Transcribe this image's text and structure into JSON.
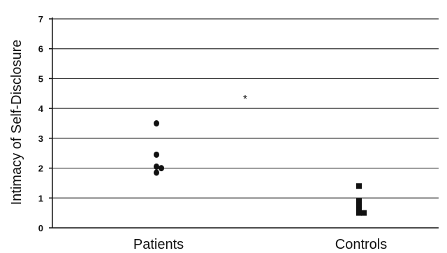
{
  "chart_data": {
    "type": "scatter",
    "ylabel": "Intimacy of Self-Disclosure",
    "xlabel": "",
    "ylim": [
      0,
      7
    ],
    "yticks": [
      "0",
      "1",
      "2",
      "3",
      "4",
      "5",
      "6",
      "7"
    ],
    "grid": true,
    "categories": [
      "Patients",
      "Controls"
    ],
    "series": [
      {
        "category": "Patients",
        "marker": "circle",
        "points": [
          {
            "offset": 0,
            "y": 3.5
          },
          {
            "offset": 0,
            "y": 2.45
          },
          {
            "offset": 0,
            "y": 2.05
          },
          {
            "offset": 1,
            "y": 2.0
          },
          {
            "offset": 0,
            "y": 1.85
          }
        ]
      },
      {
        "category": "Controls",
        "marker": "square",
        "points": [
          {
            "offset": 0,
            "y": 1.4
          },
          {
            "offset": 0,
            "y": 0.9
          },
          {
            "offset": 0,
            "y": 0.75
          },
          {
            "offset": 0,
            "y": 0.6
          },
          {
            "offset": 0,
            "y": 0.5
          },
          {
            "offset": 1,
            "y": 0.5
          }
        ]
      }
    ],
    "annotations": [
      {
        "text": "*",
        "x_between": 0.5,
        "y": 4.4
      }
    ]
  }
}
